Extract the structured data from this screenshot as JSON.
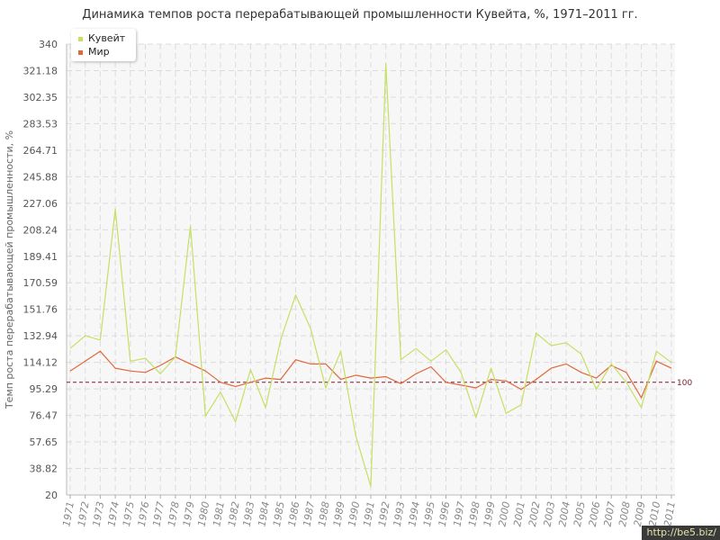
{
  "chart_data": {
    "type": "line",
    "title": "Динамика темпов роста перерабатывающей промышленности Кувейта, %, 1971–2011 гг.",
    "ylabel": "Темп роста перерабатывающей промышленности, %",
    "xlabel": "",
    "ylim": [
      20,
      340
    ],
    "y_ticks": [
      "20",
      "38.82",
      "57.65",
      "76.47",
      "95.29",
      "114.12",
      "132.94",
      "151.76",
      "170.59",
      "189.41",
      "208.24",
      "227.06",
      "245.88",
      "264.71",
      "283.53",
      "302.35",
      "321.18",
      "340"
    ],
    "categories": [
      "1971",
      "1972",
      "1973",
      "1974",
      "1975",
      "1976",
      "1977",
      "1978",
      "1979",
      "1980",
      "1981",
      "1982",
      "1983",
      "1984",
      "1985",
      "1986",
      "1987",
      "1988",
      "1989",
      "1990",
      "1991",
      "1992",
      "1993",
      "1994",
      "1995",
      "1996",
      "1997",
      "1998",
      "1999",
      "2000",
      "2001",
      "2002",
      "2003",
      "2004",
      "2005",
      "2006",
      "2007",
      "2008",
      "2009",
      "2010",
      "2011"
    ],
    "series": [
      {
        "name": "Кувейт",
        "color": "#c5e063",
        "values": [
          124,
          133,
          130,
          223,
          115,
          117,
          106,
          118,
          211,
          76,
          93,
          72,
          109,
          82,
          130,
          162,
          138,
          96,
          122,
          62,
          26,
          326,
          116,
          124,
          115,
          123,
          107,
          75,
          110,
          78,
          84,
          135,
          126,
          128,
          120,
          95,
          113,
          100,
          82,
          122,
          114
        ]
      },
      {
        "name": "Мир",
        "color": "#e0683c",
        "values": [
          108,
          115,
          122,
          110,
          108,
          107,
          112,
          118,
          113,
          108,
          100,
          97,
          100,
          103,
          102,
          116,
          113,
          113,
          102,
          105,
          103,
          104,
          99,
          106,
          111,
          100,
          98,
          96,
          102,
          101,
          95,
          102,
          110,
          113,
          107,
          103,
          112,
          107,
          89,
          115,
          110
        ]
      }
    ],
    "reference_line": {
      "value": 100,
      "label": "100",
      "color": "#7a1a2a"
    },
    "grid": true,
    "legend_position": "top-left"
  },
  "watermark": "http://be5.biz/"
}
